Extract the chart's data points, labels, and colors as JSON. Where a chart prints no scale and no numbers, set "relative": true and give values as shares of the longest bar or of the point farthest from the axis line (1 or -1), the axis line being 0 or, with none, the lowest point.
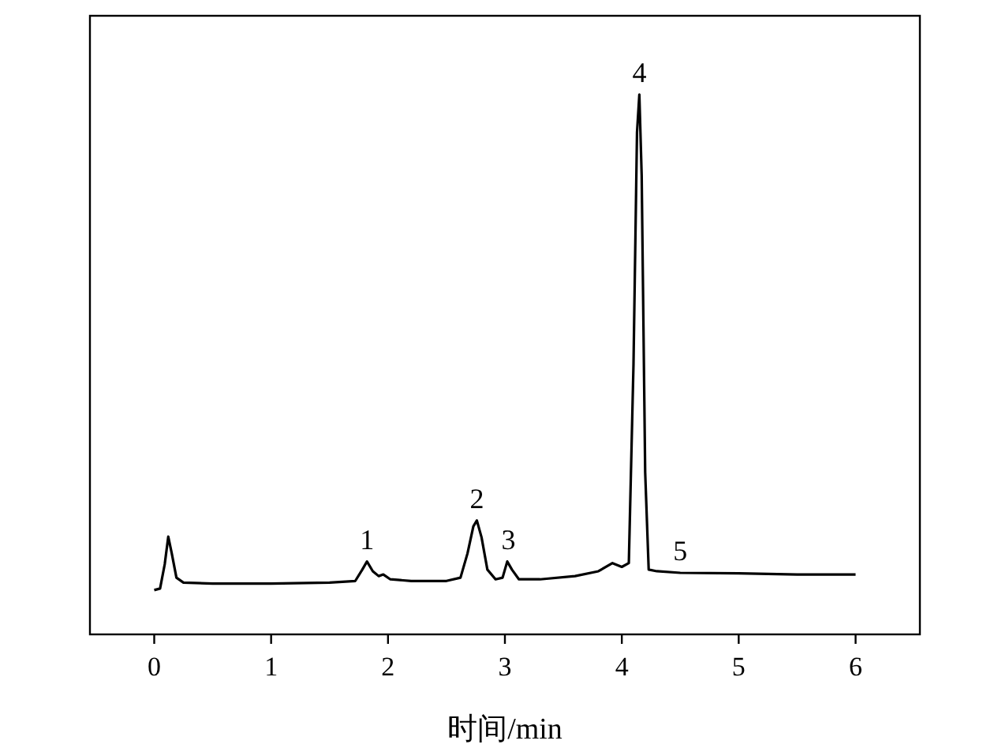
{
  "chart_data": {
    "type": "line",
    "relative": true,
    "xlabel": "时间/min",
    "xlim": [
      -0.55,
      6.55
    ],
    "xticks": [
      0,
      1,
      2,
      3,
      4,
      5,
      6
    ],
    "grid": false,
    "marker": "none",
    "line_style": "solid",
    "annotations": [
      {
        "text": "1",
        "x": 1.82,
        "y": 0.135
      },
      {
        "text": "2",
        "x": 2.76,
        "y": 0.211
      },
      {
        "text": "3",
        "x": 3.03,
        "y": 0.135
      },
      {
        "text": "4",
        "x": 4.15,
        "y": 1
      },
      {
        "text": "5",
        "x": 4.5,
        "y": 0.114
      }
    ],
    "series": [
      {
        "color": "#000000",
        "x": [
          0,
          0.05,
          0.09,
          0.12,
          0.15,
          0.19,
          0.25,
          0.5,
          1.0,
          1.5,
          1.72,
          1.78,
          1.82,
          1.87,
          1.92,
          1.96,
          2.02,
          2.2,
          2.5,
          2.62,
          2.68,
          2.73,
          2.76,
          2.8,
          2.85,
          2.92,
          2.98,
          3.02,
          3.06,
          3.12,
          3.3,
          3.6,
          3.8,
          3.92,
          4.0,
          4.06,
          4.1,
          4.13,
          4.15,
          4.17,
          4.2,
          4.23,
          4.3,
          4.5,
          5.0,
          5.5,
          6.0
        ],
        "values": [
          0.082,
          0.085,
          0.13,
          0.181,
          0.15,
          0.105,
          0.096,
          0.094,
          0.094,
          0.096,
          0.099,
          0.12,
          0.135,
          0.117,
          0.108,
          0.111,
          0.102,
          0.099,
          0.099,
          0.105,
          0.15,
          0.2,
          0.211,
          0.18,
          0.12,
          0.102,
          0.105,
          0.135,
          0.12,
          0.102,
          0.102,
          0.108,
          0.117,
          0.132,
          0.125,
          0.132,
          0.5,
          0.93,
          1,
          0.85,
          0.3,
          0.12,
          0.117,
          0.114,
          0.113,
          0.111,
          0.111
        ]
      }
    ]
  }
}
